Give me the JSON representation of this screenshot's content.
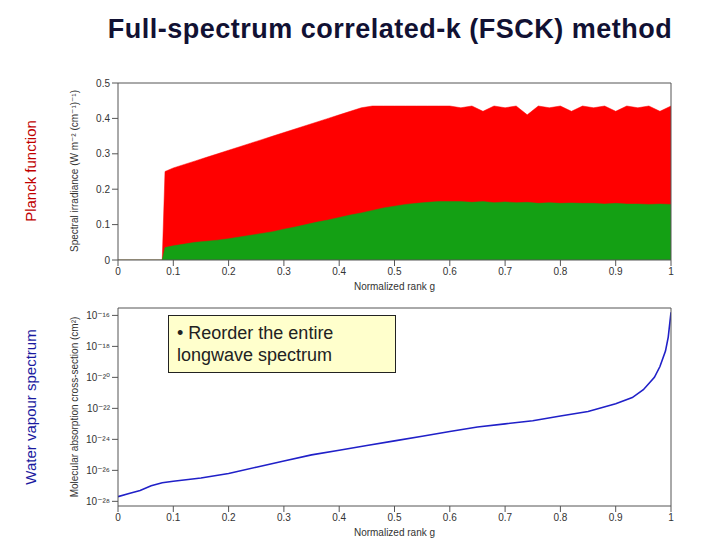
{
  "title": "Full-spectrum correlated-k (FSCK) method",
  "chart_data": [
    {
      "type": "area",
      "title": "Planck function",
      "xlabel": "Normalized rank g",
      "ylabel": "Spectral irradiance (W m⁻² (cm⁻¹)⁻¹)",
      "xlim": [
        0,
        1
      ],
      "xticks": [
        0,
        0.1,
        0.2,
        0.3,
        0.4,
        0.5,
        0.6,
        0.7,
        0.8,
        0.9,
        1
      ],
      "ylim": [
        0,
        0.5
      ],
      "yticks": [
        0,
        0.1,
        0.2,
        0.3,
        0.4,
        0.5
      ],
      "x": [
        0,
        0.08,
        0.085,
        0.1,
        0.12,
        0.14,
        0.16,
        0.18,
        0.2,
        0.22,
        0.24,
        0.26,
        0.28,
        0.3,
        0.32,
        0.34,
        0.36,
        0.38,
        0.4,
        0.42,
        0.44,
        0.46,
        0.48,
        0.5,
        0.52,
        0.54,
        0.56,
        0.58,
        0.6,
        0.62,
        0.64,
        0.66,
        0.68,
        0.7,
        0.72,
        0.74,
        0.76,
        0.78,
        0.8,
        0.82,
        0.84,
        0.86,
        0.88,
        0.9,
        0.92,
        0.94,
        0.96,
        0.98,
        1.0
      ],
      "series": [
        {
          "color": "#ff0000",
          "values": [
            0,
            0,
            0.25,
            0.26,
            0.27,
            0.28,
            0.29,
            0.3,
            0.31,
            0.32,
            0.33,
            0.34,
            0.35,
            0.36,
            0.37,
            0.38,
            0.39,
            0.4,
            0.41,
            0.42,
            0.43,
            0.435,
            0.435,
            0.435,
            0.435,
            0.435,
            0.435,
            0.435,
            0.435,
            0.43,
            0.435,
            0.42,
            0.435,
            0.43,
            0.435,
            0.41,
            0.435,
            0.43,
            0.435,
            0.42,
            0.435,
            0.43,
            0.435,
            0.42,
            0.435,
            0.43,
            0.435,
            0.42,
            0.435
          ]
        },
        {
          "color": "#14a014",
          "values": [
            0,
            0,
            0.035,
            0.04,
            0.045,
            0.05,
            0.053,
            0.056,
            0.06,
            0.065,
            0.07,
            0.075,
            0.08,
            0.087,
            0.093,
            0.1,
            0.107,
            0.113,
            0.12,
            0.127,
            0.133,
            0.14,
            0.147,
            0.152,
            0.157,
            0.16,
            0.163,
            0.165,
            0.165,
            0.165,
            0.163,
            0.165,
            0.162,
            0.164,
            0.162,
            0.163,
            0.16,
            0.162,
            0.16,
            0.161,
            0.16,
            0.16,
            0.158,
            0.16,
            0.158,
            0.158,
            0.157,
            0.158,
            0.157
          ]
        }
      ]
    },
    {
      "type": "line",
      "title": "Water vapour spectrum",
      "xlabel": "Normalized rank g",
      "ylabel": "Molecular absorption cross-section (cm²)",
      "annotation": "• Reorder the entire longwave spectrum",
      "log": "y",
      "xlim": [
        0,
        1
      ],
      "xticks": [
        0,
        0.1,
        0.2,
        0.3,
        0.4,
        0.5,
        0.6,
        0.7,
        0.8,
        0.9,
        1
      ],
      "ylim": [
        5e-29,
        3e-16
      ],
      "yticks": [
        {
          "value": 1e-28,
          "label": "10⁻²⁸"
        },
        {
          "value": 1e-26,
          "label": "10⁻²⁶"
        },
        {
          "value": 1e-24,
          "label": "10⁻²⁴"
        },
        {
          "value": 1e-22,
          "label": "10⁻²²"
        },
        {
          "value": 1e-20,
          "label": "10⁻²⁰"
        },
        {
          "value": 1e-18,
          "label": "10⁻¹⁸"
        },
        {
          "value": 1e-16,
          "label": "10⁻¹⁶"
        }
      ],
      "x": [
        0,
        0.02,
        0.04,
        0.06,
        0.08,
        0.1,
        0.15,
        0.2,
        0.25,
        0.3,
        0.35,
        0.4,
        0.45,
        0.5,
        0.55,
        0.6,
        0.65,
        0.7,
        0.75,
        0.8,
        0.85,
        0.9,
        0.93,
        0.95,
        0.97,
        0.98,
        0.99,
        0.995,
        1.0
      ],
      "color": "#2020c8",
      "values": [
        2e-28,
        3.2e-28,
        5e-28,
        1e-27,
        1.6e-27,
        2e-27,
        3.2e-27,
        6.3e-27,
        1.6e-26,
        4e-26,
        1e-25,
        2e-25,
        4e-25,
        8e-25,
        1.6e-24,
        3.2e-24,
        6.3e-24,
        1e-23,
        1.6e-23,
        3.2e-23,
        6.3e-23,
        2e-22,
        5e-22,
        1.6e-21,
        1e-20,
        5e-20,
        5e-19,
        4e-18,
        1.6e-16
      ]
    }
  ]
}
